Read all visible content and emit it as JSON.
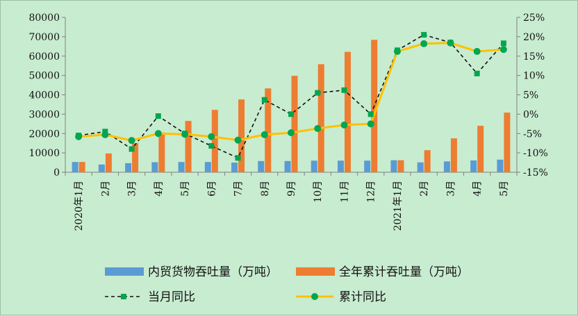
{
  "chart_data": {
    "type": "bar",
    "categories": [
      "2020年1月",
      "2月",
      "3月",
      "4月",
      "5月",
      "6月",
      "7月",
      "8月",
      "9月",
      "10月",
      "11月",
      "12月",
      "2021年1月",
      "2月",
      "3月",
      "4月",
      "5月"
    ],
    "series": [
      {
        "name": "内贸货物吞吐量（万吨）",
        "type": "bar",
        "axis": "left",
        "color": "#5b9bd5",
        "values": [
          5300,
          4000,
          4700,
          5200,
          5300,
          5300,
          5000,
          5800,
          5800,
          6000,
          6000,
          6000,
          6200,
          5100,
          5600,
          6100,
          6500
        ]
      },
      {
        "name": "全年累计吞吐量（万吨）",
        "type": "bar",
        "axis": "left",
        "color": "#ed7d31",
        "values": [
          5300,
          9700,
          15000,
          20500,
          26500,
          32200,
          37600,
          43300,
          49800,
          55800,
          62200,
          68400,
          6200,
          11400,
          17500,
          24000,
          30800
        ]
      },
      {
        "name": "当月同比",
        "type": "line",
        "axis": "right",
        "color": "#111111",
        "marker": "square",
        "marker_color": "#00a650",
        "dashed": true,
        "values": [
          -5.5,
          -4.5,
          -9.0,
          -0.5,
          -5.0,
          -8.2,
          -11.3,
          3.7,
          0.0,
          5.5,
          6.2,
          0.0,
          16.5,
          20.5,
          18.5,
          10.5,
          18.3
        ]
      },
      {
        "name": "累计同比",
        "type": "line",
        "axis": "right",
        "color": "#ffc000",
        "marker": "circle",
        "marker_color": "#00a650",
        "dashed": false,
        "values": [
          -5.8,
          -5.3,
          -6.8,
          -5.0,
          -5.2,
          -5.8,
          -6.7,
          -5.3,
          -4.8,
          -3.7,
          -2.8,
          -2.5,
          16.2,
          18.2,
          18.4,
          16.2,
          16.7
        ]
      }
    ],
    "left_axis": {
      "ylim": [
        0,
        80000
      ],
      "ticks": [
        "0",
        "10000",
        "20000",
        "30000",
        "40000",
        "50000",
        "60000",
        "70000",
        "80000"
      ]
    },
    "right_axis": {
      "ylim": [
        -15,
        25
      ],
      "ticks": [
        "-15%",
        "-10%",
        "-5%",
        "0%",
        "5%",
        "10%",
        "15%",
        "20%",
        "25%"
      ]
    },
    "grid": false,
    "legend_position": "bottom",
    "legend_labels": [
      "内贸货物吞吐量（万吨）",
      "全年累计吞吐量（万吨）",
      "当月同比",
      "累计同比"
    ],
    "background": "#c8ecd0"
  }
}
